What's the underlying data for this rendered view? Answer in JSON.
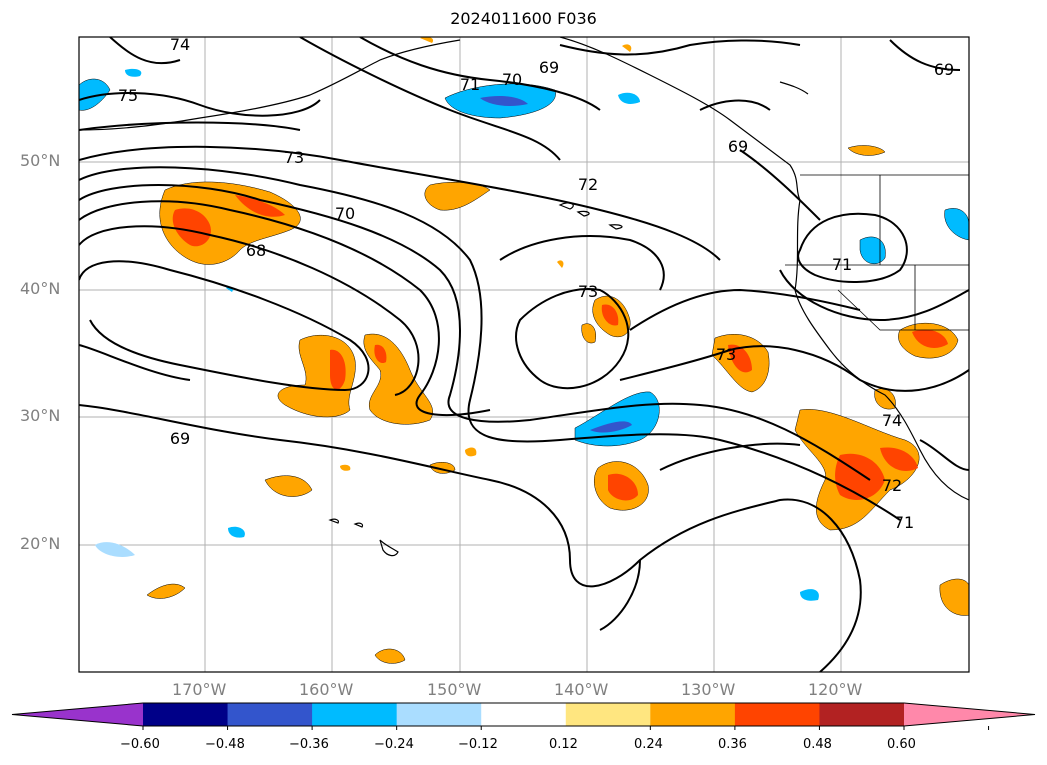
{
  "title": "2024011600 F036",
  "lat_labels": [
    "50°N",
    "40°N",
    "30°N",
    "20°N"
  ],
  "lon_labels": [
    "170°W",
    "160°W",
    "150°W",
    "140°W",
    "130°W",
    "120°W"
  ],
  "contour_labels": [
    "74",
    "75",
    "71",
    "70",
    "69",
    "69",
    "73",
    "72",
    "70",
    "68",
    "73",
    "71",
    "73",
    "74",
    "72",
    "71",
    "69",
    "69"
  ],
  "colorbar": {
    "ticks": [
      "−0.60",
      "−0.48",
      "−0.36",
      "−0.24",
      "−0.12",
      "0.12",
      "0.24",
      "0.36",
      "0.48",
      "0.60"
    ],
    "colors": [
      "#9933cc",
      "#000088",
      "#3355cc",
      "#00bbff",
      "#aaddff",
      "#ffffff",
      "#ffe680",
      "#ffa500",
      "#ff4400",
      "#b22222",
      "#ff88aa"
    ]
  },
  "colors": {
    "orange": "#ffa500",
    "red_orange": "#ff4400",
    "yellow": "#ffe680",
    "blue": "#00bbff",
    "light_blue": "#aaddff",
    "mid_blue": "#3355cc"
  }
}
